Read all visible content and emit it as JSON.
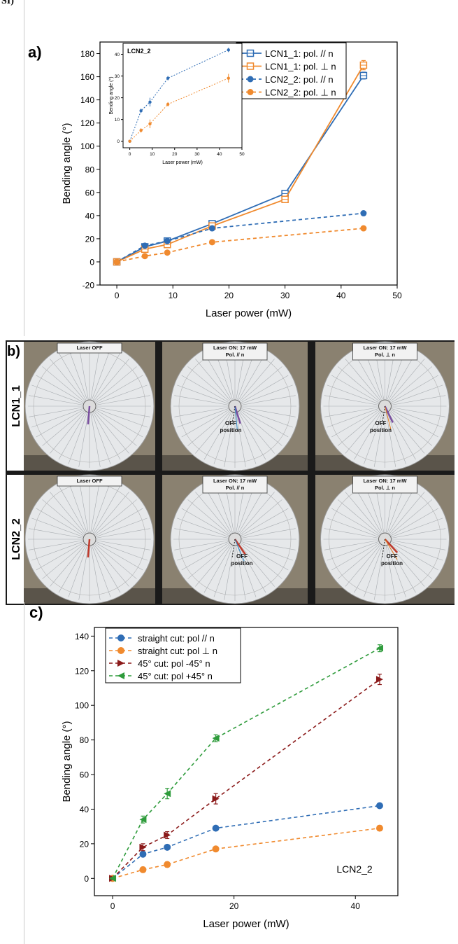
{
  "page_label": "SI)",
  "chart_data": [
    {
      "type": "line",
      "panel_label": "a)",
      "xlabel": "Laser power (mW)",
      "ylabel": "Bending angle (°)",
      "xlim": [
        -3,
        50
      ],
      "ylim": [
        -20,
        190
      ],
      "xticks": [
        0,
        10,
        20,
        30,
        40,
        50
      ],
      "yticks": [
        -20,
        0,
        20,
        40,
        60,
        80,
        100,
        120,
        140,
        160,
        180
      ],
      "legend_position": "top-right",
      "series": [
        {
          "name": "LCN1_1: pol. // n",
          "color": "#2f6db5",
          "dash": "solid",
          "marker": "open-square",
          "x": [
            0,
            5,
            9,
            17,
            30,
            44
          ],
          "y": [
            0,
            13,
            18,
            33,
            59,
            161
          ],
          "err": [
            1,
            1,
            1.5,
            2,
            2,
            3
          ]
        },
        {
          "name": "LCN1_1: pol. ⊥ n",
          "color": "#f08a2e",
          "dash": "solid",
          "marker": "open-square",
          "x": [
            0,
            5,
            9,
            17,
            30,
            44
          ],
          "y": [
            0,
            11,
            15,
            31,
            54,
            170
          ],
          "err": [
            1,
            1,
            1.5,
            2,
            2,
            4
          ]
        },
        {
          "name": "LCN2_2: pol. // n",
          "color": "#2f6db5",
          "dash": "dashed",
          "marker": "circle",
          "x": [
            0,
            5,
            9,
            17,
            44
          ],
          "y": [
            0,
            14,
            18,
            29,
            42
          ],
          "err": [
            0.5,
            1,
            1.5,
            1,
            1
          ]
        },
        {
          "name": "LCN2_2: pol. ⊥ n",
          "color": "#f08a2e",
          "dash": "dashed",
          "marker": "circle",
          "x": [
            0,
            5,
            9,
            17,
            44
          ],
          "y": [
            0,
            5,
            8,
            17,
            29
          ],
          "err": [
            0.5,
            1,
            1.5,
            1,
            1
          ]
        }
      ],
      "inset": {
        "label": "LCN2_2",
        "xlabel": "Laser power (mW)",
        "ylabel": "Bending angle (°)",
        "xlim": [
          -3,
          50
        ],
        "ylim": [
          -3,
          45
        ],
        "xticks": [
          0,
          10,
          20,
          30,
          40,
          50
        ],
        "yticks": [
          0,
          10,
          20,
          30,
          40
        ],
        "series": [
          {
            "color": "#2f6db5",
            "x": [
              0,
              5,
              9,
              17,
              44
            ],
            "y": [
              0,
              14,
              18,
              29,
              42
            ],
            "err": [
              0.5,
              1,
              2,
              1,
              1
            ]
          },
          {
            "color": "#f08a2e",
            "x": [
              0,
              5,
              9,
              17,
              44
            ],
            "y": [
              0,
              5,
              8,
              17,
              29
            ],
            "err": [
              0.5,
              1,
              2,
              1,
              2
            ]
          }
        ]
      }
    },
    {
      "type": "line",
      "panel_label": "c)",
      "xlabel": "Laser power (mW)",
      "ylabel": "Bending angle (°)",
      "xlim": [
        -3,
        47
      ],
      "ylim": [
        -10,
        145
      ],
      "xticks": [
        0,
        20,
        40
      ],
      "yticks": [
        0,
        20,
        40,
        60,
        80,
        100,
        120,
        140
      ],
      "legend_position": "top-left",
      "annotation": "LCN2_2",
      "series": [
        {
          "name": "straight cut: pol // n",
          "color": "#2f6db5",
          "marker": "circle",
          "x": [
            0,
            5,
            9,
            17,
            44
          ],
          "y": [
            0,
            14,
            18,
            29,
            42
          ],
          "err": [
            0.5,
            1,
            1,
            1,
            1
          ]
        },
        {
          "name": "straight cut: pol ⊥ n",
          "color": "#f08a2e",
          "marker": "circle",
          "x": [
            0,
            5,
            9,
            17,
            44
          ],
          "y": [
            0,
            5,
            8,
            17,
            29
          ],
          "err": [
            0.5,
            1,
            1.5,
            1,
            1.5
          ]
        },
        {
          "name": "45° cut: pol -45° n",
          "color": "#8b1a1a",
          "marker": "triangle-right",
          "x": [
            0,
            5,
            9,
            17,
            44
          ],
          "y": [
            0,
            18,
            25,
            46,
            115
          ],
          "err": [
            0.5,
            2,
            2,
            3,
            3
          ]
        },
        {
          "name": "45° cut: pol +45° n",
          "color": "#2e9b3b",
          "marker": "triangle-left",
          "x": [
            0,
            5,
            9,
            17,
            44
          ],
          "y": [
            0,
            34,
            49,
            81,
            133
          ],
          "err": [
            0.5,
            2,
            3,
            2,
            2
          ]
        }
      ]
    }
  ],
  "panel_b": {
    "label": "b)",
    "rows": [
      {
        "sample": "LCN1_1",
        "photos": [
          {
            "caption": [
              "Laser OFF"
            ],
            "off_label": [
              "",
              ""
            ]
          },
          {
            "caption": [
              "Laser ON: 17 mW",
              "Pol. // n"
            ],
            "off_label": [
              "OFF",
              "position"
            ]
          },
          {
            "caption": [
              "Laser ON: 17 mW",
              "Pol. ⊥ n"
            ],
            "off_label": [
              "OFF",
              "position"
            ]
          }
        ]
      },
      {
        "sample": "LCN2_2",
        "photos": [
          {
            "caption": [
              "Laser OFF"
            ],
            "off_label": [
              "",
              ""
            ]
          },
          {
            "caption": [
              "Laser ON: 17 mW",
              "Pol. // n"
            ],
            "off_label": [
              "OFF",
              "position"
            ]
          },
          {
            "caption": [
              "Laser ON: 17 mW",
              "Pol. ⊥ n"
            ],
            "off_label": [
              "OFF",
              "position"
            ]
          }
        ]
      }
    ],
    "strip_colors": [
      "#7a4fa0",
      "#c0392b",
      "#2e86c1",
      "#e67e22"
    ]
  }
}
